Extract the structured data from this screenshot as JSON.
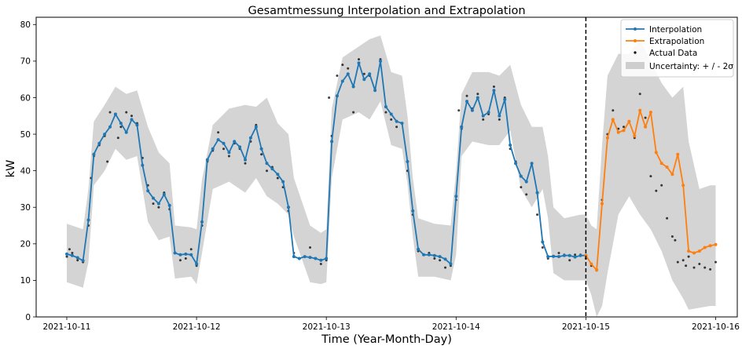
{
  "colors": {
    "interpolation": "#1f77b4",
    "extrapolation": "#ff7f0e",
    "actual": "#000000",
    "band": "#b0b0b0",
    "forecast_line": "#000000"
  },
  "chart_data": {
    "type": "line",
    "title": "Gesamtmessung Interpolation and Extrapolation",
    "xlabel": "Time (Year-Month-Day)",
    "ylabel": "kW",
    "x_unit": "datetime",
    "xlim": [
      "2021-10-10T18:20",
      "2021-10-16T04:00"
    ],
    "ylim": [
      0,
      82
    ],
    "x_tick_labels": [
      "2021-10-11",
      "2021-10-12",
      "2021-10-13",
      "2021-10-14",
      "2021-10-15",
      "2021-10-16"
    ],
    "y_ticks": [
      0,
      10,
      20,
      30,
      40,
      50,
      60,
      70,
      80
    ],
    "grid": false,
    "legend_position": "top-right",
    "forecast_start": "2021-10-15T00:00",
    "legend": [
      "Interpolation",
      "Extrapolation",
      "Actual Data",
      "Uncertainty: + / - 2σ"
    ],
    "series": [
      {
        "name": "Interpolation",
        "x": [
          "2021-10-11T00:00",
          "2021-10-11T01:00",
          "2021-10-11T02:00",
          "2021-10-11T03:00",
          "2021-10-11T04:00",
          "2021-10-11T05:00",
          "2021-10-11T06:00",
          "2021-10-11T07:00",
          "2021-10-11T08:00",
          "2021-10-11T09:00",
          "2021-10-11T10:00",
          "2021-10-11T11:00",
          "2021-10-11T12:00",
          "2021-10-11T13:00",
          "2021-10-11T14:00",
          "2021-10-11T15:00",
          "2021-10-11T16:00",
          "2021-10-11T17:00",
          "2021-10-11T18:00",
          "2021-10-11T19:00",
          "2021-10-11T20:00",
          "2021-10-11T21:00",
          "2021-10-11T22:00",
          "2021-10-11T23:00",
          "2021-10-12T00:00",
          "2021-10-12T01:00",
          "2021-10-12T02:00",
          "2021-10-12T03:00",
          "2021-10-12T04:00",
          "2021-10-12T05:00",
          "2021-10-12T06:00",
          "2021-10-12T07:00",
          "2021-10-12T08:00",
          "2021-10-12T09:00",
          "2021-10-12T10:00",
          "2021-10-12T11:00",
          "2021-10-12T12:00",
          "2021-10-12T13:00",
          "2021-10-12T14:00",
          "2021-10-12T15:00",
          "2021-10-12T16:00",
          "2021-10-12T17:00",
          "2021-10-12T18:00",
          "2021-10-12T19:00",
          "2021-10-12T20:00",
          "2021-10-12T21:00",
          "2021-10-12T22:00",
          "2021-10-12T23:00",
          "2021-10-13T00:00",
          "2021-10-13T01:00",
          "2021-10-13T02:00",
          "2021-10-13T03:00",
          "2021-10-13T04:00",
          "2021-10-13T05:00",
          "2021-10-13T06:00",
          "2021-10-13T07:00",
          "2021-10-13T08:00",
          "2021-10-13T09:00",
          "2021-10-13T10:00",
          "2021-10-13T11:00",
          "2021-10-13T12:00",
          "2021-10-13T13:00",
          "2021-10-13T14:00",
          "2021-10-13T15:00",
          "2021-10-13T16:00",
          "2021-10-13T17:00",
          "2021-10-13T18:00",
          "2021-10-13T19:00",
          "2021-10-13T20:00",
          "2021-10-13T21:00",
          "2021-10-13T22:00",
          "2021-10-13T23:00",
          "2021-10-14T00:00",
          "2021-10-14T01:00",
          "2021-10-14T02:00",
          "2021-10-14T03:00",
          "2021-10-14T04:00",
          "2021-10-14T05:00",
          "2021-10-14T06:00",
          "2021-10-14T07:00",
          "2021-10-14T08:00",
          "2021-10-14T09:00",
          "2021-10-14T10:00",
          "2021-10-14T11:00",
          "2021-10-14T12:00",
          "2021-10-14T13:00",
          "2021-10-14T14:00",
          "2021-10-14T15:00",
          "2021-10-14T16:00",
          "2021-10-14T17:00",
          "2021-10-14T18:00",
          "2021-10-14T19:00",
          "2021-10-14T20:00",
          "2021-10-14T21:00",
          "2021-10-14T22:00",
          "2021-10-14T23:00",
          "2021-10-15T00:00"
        ],
        "y": [
          17.2,
          16.8,
          16.2,
          15.4,
          26.5,
          44.5,
          47.5,
          50.0,
          52.0,
          55.5,
          53.0,
          50.5,
          54.0,
          52.5,
          41.5,
          34.5,
          32.5,
          31.0,
          33.5,
          30.5,
          17.5,
          17.0,
          17.2,
          17.0,
          14.5,
          26.0,
          43.0,
          46.0,
          48.5,
          47.5,
          45.0,
          48.0,
          46.5,
          43.0,
          49.0,
          52.0,
          46.0,
          42.0,
          40.5,
          39.0,
          37.0,
          30.0,
          16.5,
          16.0,
          16.5,
          16.3,
          16.0,
          15.5,
          16.0,
          48.0,
          60.5,
          64.5,
          66.5,
          63.0,
          69.5,
          65.0,
          66.5,
          62.0,
          70.0,
          57.5,
          55.5,
          53.5,
          53.0,
          42.5,
          29.0,
          18.5,
          17.0,
          17.0,
          16.8,
          16.5,
          15.8,
          14.5,
          33.0,
          52.0,
          59.0,
          56.5,
          60.0,
          55.0,
          56.0,
          62.0,
          55.0,
          59.5,
          47.0,
          42.0,
          38.5,
          37.0,
          42.0,
          34.0,
          20.5,
          16.5,
          16.6,
          16.5,
          16.8,
          16.8,
          16.4,
          16.8,
          16.8
        ]
      },
      {
        "name": "Extrapolation",
        "x": [
          "2021-10-15T00:00",
          "2021-10-15T01:00",
          "2021-10-15T02:00",
          "2021-10-15T03:00",
          "2021-10-15T04:00",
          "2021-10-15T05:00",
          "2021-10-15T06:00",
          "2021-10-15T07:00",
          "2021-10-15T08:00",
          "2021-10-15T09:00",
          "2021-10-15T10:00",
          "2021-10-15T11:00",
          "2021-10-15T12:00",
          "2021-10-15T13:00",
          "2021-10-15T14:00",
          "2021-10-15T15:00",
          "2021-10-15T16:00",
          "2021-10-15T17:00",
          "2021-10-15T18:00",
          "2021-10-15T19:00",
          "2021-10-15T20:00",
          "2021-10-15T21:00",
          "2021-10-15T22:00",
          "2021-10-15T23:00",
          "2021-10-16T00:00"
        ],
        "y": [
          16.8,
          14.5,
          12.8,
          31.0,
          49.0,
          54.0,
          50.5,
          51.0,
          53.5,
          49.5,
          56.5,
          52.0,
          56.0,
          45.0,
          42.0,
          41.0,
          39.0,
          44.5,
          36.0,
          18.0,
          17.5,
          18.0,
          19.0,
          19.5,
          19.8
        ]
      }
    ],
    "uncertainty": {
      "name": "Uncertainty: + / - 2σ",
      "x": [
        "2021-10-11T00:00",
        "2021-10-11T03:00",
        "2021-10-11T04:00",
        "2021-10-11T05:00",
        "2021-10-11T07:00",
        "2021-10-11T09:00",
        "2021-10-11T11:00",
        "2021-10-11T13:00",
        "2021-10-11T15:00",
        "2021-10-11T17:00",
        "2021-10-11T19:00",
        "2021-10-11T20:00",
        "2021-10-11T23:00",
        "2021-10-12T00:00",
        "2021-10-12T01:00",
        "2021-10-12T03:00",
        "2021-10-12T06:00",
        "2021-10-12T09:00",
        "2021-10-12T11:00",
        "2021-10-12T13:00",
        "2021-10-12T15:00",
        "2021-10-12T17:00",
        "2021-10-12T18:00",
        "2021-10-12T21:00",
        "2021-10-12T23:00",
        "2021-10-13T00:00",
        "2021-10-13T01:00",
        "2021-10-13T03:00",
        "2021-10-13T06:00",
        "2021-10-13T08:00",
        "2021-10-13T10:00",
        "2021-10-13T12:00",
        "2021-10-13T14:00",
        "2021-10-13T15:00",
        "2021-10-13T16:00",
        "2021-10-13T17:00",
        "2021-10-13T20:00",
        "2021-10-13T23:00",
        "2021-10-14T00:00",
        "2021-10-14T01:00",
        "2021-10-14T03:00",
        "2021-10-14T06:00",
        "2021-10-14T08:00",
        "2021-10-14T10:00",
        "2021-10-14T12:00",
        "2021-10-14T14:00",
        "2021-10-14T16:00",
        "2021-10-14T17:00",
        "2021-10-14T18:00",
        "2021-10-14T20:00",
        "2021-10-14T23:00",
        "2021-10-15T00:00",
        "2021-10-15T01:00",
        "2021-10-15T02:00",
        "2021-10-15T03:00",
        "2021-10-15T04:00",
        "2021-10-15T06:00",
        "2021-10-15T08:00",
        "2021-10-15T10:00",
        "2021-10-15T12:00",
        "2021-10-15T14:00",
        "2021-10-15T16:00",
        "2021-10-15T18:00",
        "2021-10-15T19:00",
        "2021-10-15T21:00",
        "2021-10-15T23:00",
        "2021-10-16T00:00"
      ],
      "lower": [
        9.5,
        8.0,
        15.0,
        36.0,
        40.0,
        46.0,
        43.0,
        44.0,
        26.0,
        21.0,
        22.0,
        10.5,
        11.0,
        9.0,
        17.5,
        35.0,
        37.0,
        34.0,
        38.0,
        33.0,
        31.0,
        28.0,
        22.0,
        9.5,
        9.0,
        9.5,
        38.0,
        54.0,
        56.0,
        54.0,
        59.0,
        47.0,
        46.0,
        36.5,
        22.0,
        11.0,
        11.0,
        10.0,
        17.0,
        44.0,
        48.0,
        47.0,
        47.0,
        51.0,
        35.0,
        30.0,
        35.0,
        27.0,
        12.0,
        10.0,
        10.0,
        10.0,
        6.0,
        0.0,
        3.0,
        12.0,
        28.0,
        33.0,
        28.0,
        24.0,
        18.0,
        10.0,
        5.0,
        2.0,
        2.5,
        3.0,
        3.0
      ],
      "upper": [
        25.5,
        24.0,
        35.0,
        53.5,
        58.0,
        63.0,
        61.0,
        62.0,
        52.0,
        45.0,
        42.0,
        25.0,
        24.5,
        24.0,
        37.5,
        52.5,
        57.0,
        58.0,
        57.5,
        60.0,
        53.0,
        50.0,
        38.0,
        25.0,
        23.0,
        24.0,
        57.0,
        71.0,
        74.0,
        76.0,
        77.0,
        67.0,
        66.0,
        55.0,
        38.0,
        27.0,
        25.5,
        25.0,
        40.0,
        61.0,
        67.0,
        67.0,
        66.0,
        69.0,
        58.0,
        52.0,
        52.0,
        44.0,
        30.0,
        27.0,
        28.0,
        28.0,
        25.0,
        24.0,
        47.0,
        66.0,
        72.0,
        72.0,
        76.0,
        70.0,
        64.0,
        60.0,
        63.0,
        48.0,
        35.0,
        36.0,
        36.0
      ]
    },
    "actual_points": [
      [
        "2021-10-11T00:00",
        16.5
      ],
      [
        "2021-10-11T00:30",
        18.5
      ],
      [
        "2021-10-11T01:00",
        17.5
      ],
      [
        "2021-10-11T02:00",
        15.5
      ],
      [
        "2021-10-11T03:00",
        15.0
      ],
      [
        "2021-10-11T04:00",
        25.0
      ],
      [
        "2021-10-11T04:30",
        38.0
      ],
      [
        "2021-10-11T05:00",
        44.0
      ],
      [
        "2021-10-11T06:00",
        47.0
      ],
      [
        "2021-10-11T07:00",
        49.5
      ],
      [
        "2021-10-11T07:30",
        42.5
      ],
      [
        "2021-10-11T08:00",
        56.0
      ],
      [
        "2021-10-11T09:00",
        55.5
      ],
      [
        "2021-10-11T09:30",
        49.0
      ],
      [
        "2021-10-11T10:00",
        52.0
      ],
      [
        "2021-10-11T11:00",
        56.0
      ],
      [
        "2021-10-11T12:00",
        55.0
      ],
      [
        "2021-10-11T13:00",
        53.0
      ],
      [
        "2021-10-11T14:00",
        43.5
      ],
      [
        "2021-10-11T15:00",
        36.0
      ],
      [
        "2021-10-11T16:00",
        31.0
      ],
      [
        "2021-10-11T17:00",
        30.0
      ],
      [
        "2021-10-11T18:00",
        34.0
      ],
      [
        "2021-10-11T19:00",
        29.5
      ],
      [
        "2021-10-11T20:00",
        17.5
      ],
      [
        "2021-10-11T21:00",
        15.5
      ],
      [
        "2021-10-11T22:00",
        16.0
      ],
      [
        "2021-10-11T23:00",
        18.5
      ],
      [
        "2021-10-12T00:00",
        14.0
      ],
      [
        "2021-10-12T01:00",
        25.0
      ],
      [
        "2021-10-12T02:00",
        42.5
      ],
      [
        "2021-10-12T03:00",
        45.5
      ],
      [
        "2021-10-12T04:00",
        50.5
      ],
      [
        "2021-10-12T05:00",
        46.0
      ],
      [
        "2021-10-12T06:00",
        44.0
      ],
      [
        "2021-10-12T07:00",
        47.5
      ],
      [
        "2021-10-12T08:00",
        46.0
      ],
      [
        "2021-10-12T09:00",
        42.0
      ],
      [
        "2021-10-12T10:00",
        48.0
      ],
      [
        "2021-10-12T11:00",
        52.5
      ],
      [
        "2021-10-12T12:00",
        44.5
      ],
      [
        "2021-10-12T13:00",
        40.0
      ],
      [
        "2021-10-12T14:00",
        41.0
      ],
      [
        "2021-10-12T15:00",
        38.0
      ],
      [
        "2021-10-12T16:00",
        35.5
      ],
      [
        "2021-10-12T17:00",
        29.0
      ],
      [
        "2021-10-12T18:00",
        17.5
      ],
      [
        "2021-10-12T19:00",
        16.0
      ],
      [
        "2021-10-12T20:00",
        16.5
      ],
      [
        "2021-10-12T21:00",
        19.0
      ],
      [
        "2021-10-12T22:00",
        16.0
      ],
      [
        "2021-10-12T23:00",
        14.5
      ],
      [
        "2021-10-13T00:00",
        15.5
      ],
      [
        "2021-10-13T00:30",
        60.0
      ],
      [
        "2021-10-13T01:00",
        49.5
      ],
      [
        "2021-10-13T02:00",
        66.0
      ],
      [
        "2021-10-13T03:00",
        69.0
      ],
      [
        "2021-10-13T04:00",
        68.0
      ],
      [
        "2021-10-13T05:00",
        56.0
      ],
      [
        "2021-10-13T06:00",
        70.5
      ],
      [
        "2021-10-13T07:00",
        66.5
      ],
      [
        "2021-10-13T08:00",
        66.0
      ],
      [
        "2021-10-13T09:00",
        62.5
      ],
      [
        "2021-10-13T10:00",
        70.5
      ],
      [
        "2021-10-13T11:00",
        56.0
      ],
      [
        "2021-10-13T12:00",
        54.0
      ],
      [
        "2021-10-13T13:00",
        52.0
      ],
      [
        "2021-10-13T14:00",
        53.0
      ],
      [
        "2021-10-13T15:00",
        40.0
      ],
      [
        "2021-10-13T16:00",
        28.0
      ],
      [
        "2021-10-13T17:00",
        18.0
      ],
      [
        "2021-10-13T18:00",
        17.0
      ],
      [
        "2021-10-13T19:00",
        17.5
      ],
      [
        "2021-10-13T20:00",
        16.0
      ],
      [
        "2021-10-13T21:00",
        15.5
      ],
      [
        "2021-10-13T22:00",
        13.5
      ],
      [
        "2021-10-13T23:00",
        14.0
      ],
      [
        "2021-10-14T00:00",
        32.0
      ],
      [
        "2021-10-14T00:30",
        56.5
      ],
      [
        "2021-10-14T01:00",
        51.5
      ],
      [
        "2021-10-14T02:00",
        60.5
      ],
      [
        "2021-10-14T03:00",
        57.0
      ],
      [
        "2021-10-14T04:00",
        61.0
      ],
      [
        "2021-10-14T05:00",
        54.0
      ],
      [
        "2021-10-14T06:00",
        55.5
      ],
      [
        "2021-10-14T07:00",
        63.0
      ],
      [
        "2021-10-14T08:00",
        54.0
      ],
      [
        "2021-10-14T09:00",
        60.0
      ],
      [
        "2021-10-14T10:00",
        46.0
      ],
      [
        "2021-10-14T11:00",
        42.5
      ],
      [
        "2021-10-14T12:00",
        35.5
      ],
      [
        "2021-10-14T13:00",
        33.5
      ],
      [
        "2021-10-14T14:00",
        42.0
      ],
      [
        "2021-10-14T15:00",
        28.0
      ],
      [
        "2021-10-14T16:00",
        19.0
      ],
      [
        "2021-10-14T17:00",
        16.0
      ],
      [
        "2021-10-14T18:00",
        16.5
      ],
      [
        "2021-10-14T19:00",
        17.5
      ],
      [
        "2021-10-14T20:00",
        17.0
      ],
      [
        "2021-10-14T21:00",
        15.5
      ],
      [
        "2021-10-14T22:00",
        17.0
      ],
      [
        "2021-10-14T23:00",
        17.0
      ],
      [
        "2021-10-15T00:00",
        16.0
      ],
      [
        "2021-10-15T01:00",
        14.0
      ],
      [
        "2021-10-15T02:00",
        13.0
      ],
      [
        "2021-10-15T03:00",
        32.0
      ],
      [
        "2021-10-15T04:00",
        50.0
      ],
      [
        "2021-10-15T05:00",
        56.5
      ],
      [
        "2021-10-15T06:00",
        51.5
      ],
      [
        "2021-10-15T07:00",
        52.0
      ],
      [
        "2021-10-15T08:00",
        53.5
      ],
      [
        "2021-10-15T09:00",
        49.0
      ],
      [
        "2021-10-15T10:00",
        61.0
      ],
      [
        "2021-10-15T11:00",
        54.5
      ],
      [
        "2021-10-15T12:00",
        38.5
      ],
      [
        "2021-10-15T13:00",
        34.5
      ],
      [
        "2021-10-15T14:00",
        36.0
      ],
      [
        "2021-10-15T15:00",
        27.0
      ],
      [
        "2021-10-15T16:00",
        22.0
      ],
      [
        "2021-10-15T16:30",
        21.0
      ],
      [
        "2021-10-15T17:00",
        15.0
      ],
      [
        "2021-10-15T18:00",
        15.5
      ],
      [
        "2021-10-15T18:30",
        14.0
      ],
      [
        "2021-10-15T19:00",
        16.5
      ],
      [
        "2021-10-15T20:00",
        13.5
      ],
      [
        "2021-10-15T21:00",
        14.5
      ],
      [
        "2021-10-15T22:00",
        13.5
      ],
      [
        "2021-10-15T23:00",
        13.0
      ],
      [
        "2021-10-16T00:00",
        15.0
      ]
    ]
  }
}
